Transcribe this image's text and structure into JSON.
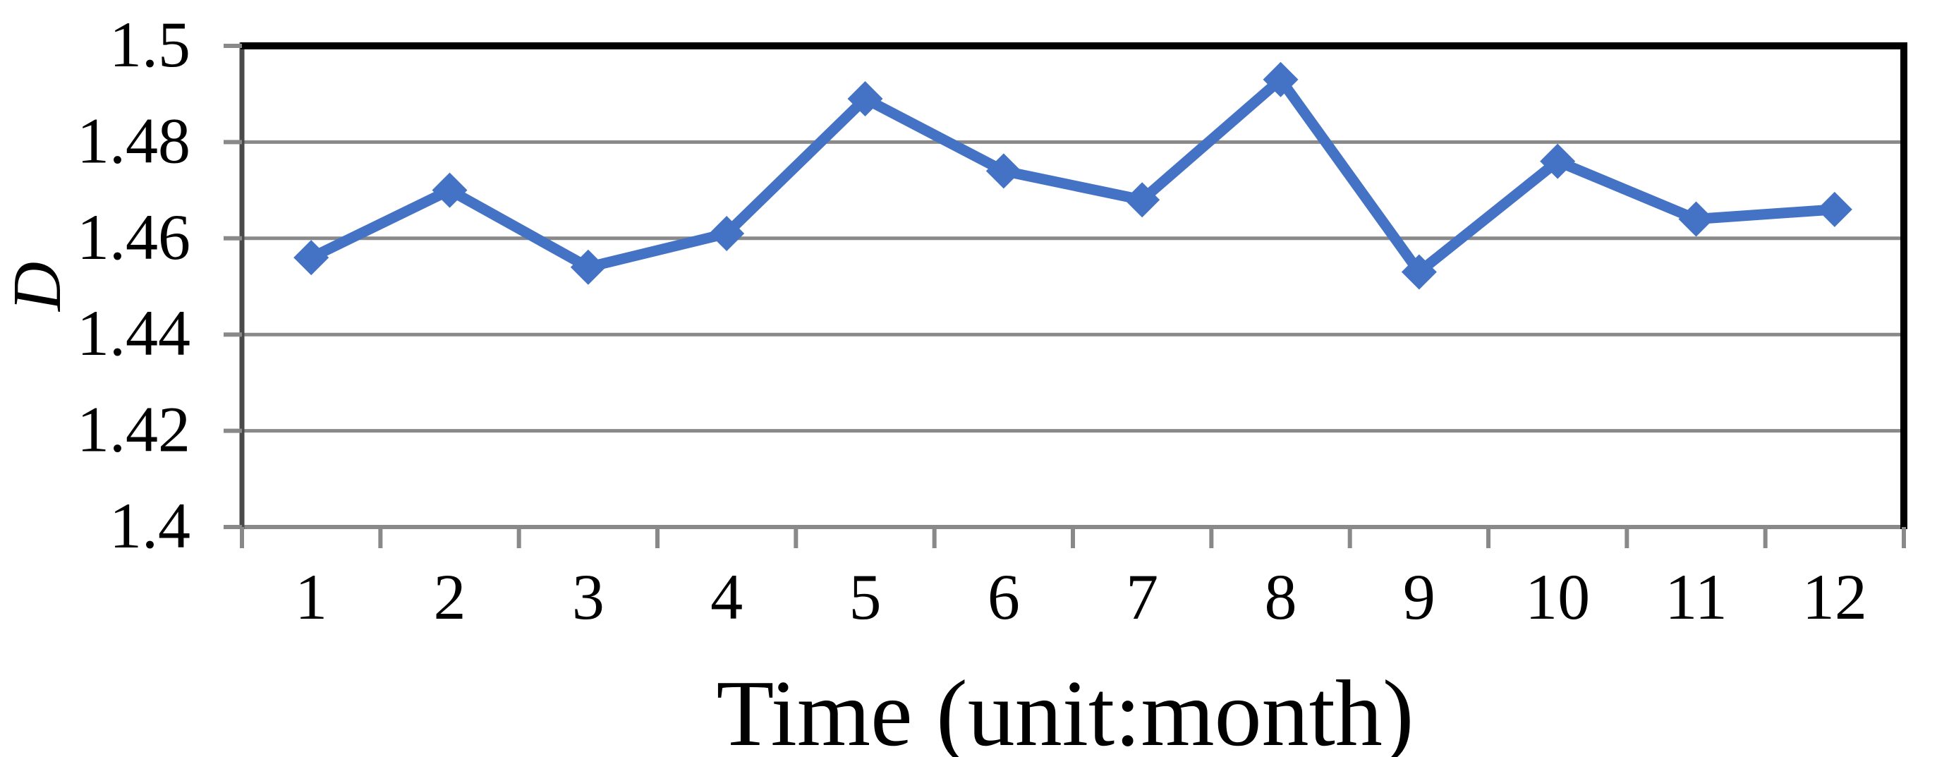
{
  "figure": {
    "background": "#FFFFFF"
  },
  "chart_data": {
    "type": "line",
    "title": "",
    "xlabel": "Time (unit:month)",
    "ylabel": "D",
    "categories": [
      "1",
      "2",
      "3",
      "4",
      "5",
      "6",
      "7",
      "8",
      "9",
      "10",
      "11",
      "12"
    ],
    "series": [
      {
        "name": "D",
        "color": "#4472C4",
        "marker": "diamond",
        "values": [
          1.456,
          1.47,
          1.454,
          1.461,
          1.489,
          1.474,
          1.468,
          1.493,
          1.453,
          1.476,
          1.464,
          1.466
        ]
      }
    ],
    "ylim": [
      1.4,
      1.5
    ],
    "xlim_categories": 12,
    "yticks": {
      "values": [
        1.4,
        1.42,
        1.44,
        1.46,
        1.48,
        1.5
      ],
      "labels": [
        "1.4",
        "1.42",
        "1.44",
        "1.46",
        "1.48",
        "1.5"
      ]
    },
    "grid": "horizontal-major",
    "legend": "none",
    "colors": {
      "series": "#4472C4",
      "gridline": "#898989",
      "tick": "#898989",
      "bottom_axis": "#898989",
      "left_axis": "#4A4A4A",
      "border": "#000000",
      "text": "#000000",
      "background": "#FFFFFF"
    }
  }
}
